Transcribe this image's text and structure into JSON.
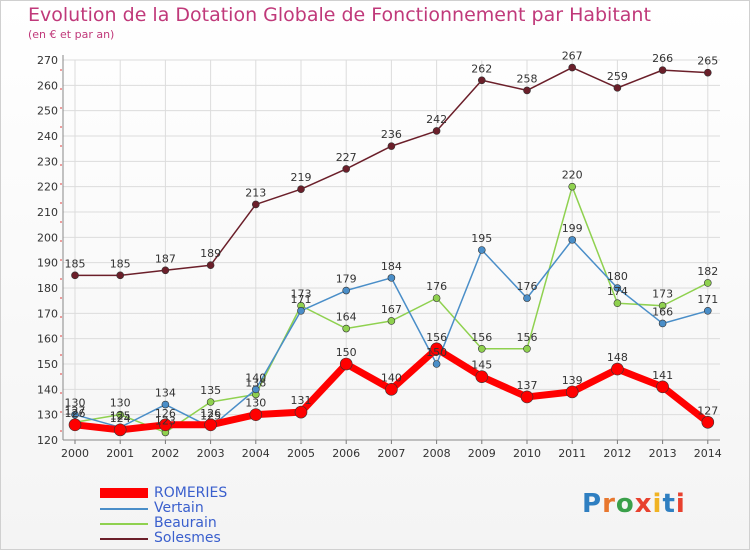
{
  "chart_data": {
    "type": "line",
    "title": "Evolution de la Dotation Globale de Fonctionnement par Habitant",
    "subtitle": "(en € et par an)",
    "x": [
      "2000",
      "2001",
      "2002",
      "2003",
      "2004",
      "2005",
      "2006",
      "2007",
      "2008",
      "2009",
      "2010",
      "2011",
      "2012",
      "2013",
      "2014"
    ],
    "y_ticks": [
      120,
      130,
      140,
      150,
      160,
      170,
      180,
      190,
      200,
      210,
      220,
      230,
      240,
      250,
      260,
      270
    ],
    "ylim": [
      120,
      270
    ],
    "grid": true,
    "legend_position": "bottom-left",
    "series": [
      {
        "name": "Solesmes",
        "color": "#6b1f2a",
        "width": 1.5,
        "marker": 3.5,
        "values": [
          185,
          185,
          187,
          189,
          213,
          219,
          227,
          236,
          242,
          262,
          258,
          267,
          259,
          266,
          265
        ]
      },
      {
        "name": "Beaurain",
        "color": "#8fd14f",
        "width": 1.5,
        "marker": 3.5,
        "values": [
          127,
          130,
          123,
          135,
          138,
          173,
          164,
          167,
          176,
          156,
          156,
          220,
          174,
          173,
          182
        ]
      },
      {
        "name": "Vertain",
        "color": "#4a8ec8",
        "width": 1.5,
        "marker": 3.5,
        "values": [
          130,
          125,
          134,
          125,
          140,
          171,
          179,
          184,
          150,
          195,
          176,
          199,
          180,
          166,
          171
        ]
      },
      {
        "name": "ROMERIES",
        "color": "#ff0000",
        "width": 7,
        "marker": 6,
        "values": [
          126,
          124,
          126,
          126,
          130,
          131,
          150,
          140,
          156,
          145,
          137,
          139,
          148,
          141,
          127
        ]
      }
    ]
  },
  "legend": {
    "items": [
      {
        "name": "ROMERIES",
        "color": "#ff0000"
      },
      {
        "name": "Vertain",
        "color": "#4a8ec8"
      },
      {
        "name": "Beaurain",
        "color": "#8fd14f"
      },
      {
        "name": "Solesmes",
        "color": "#6b1f2a"
      }
    ]
  },
  "logo": {
    "text": "Proxiti",
    "colors": [
      "#2f7fc1",
      "#e8772e",
      "#3aa04a",
      "#e8412e",
      "#f0b323",
      "#2f7fc1",
      "#e8412e"
    ]
  }
}
